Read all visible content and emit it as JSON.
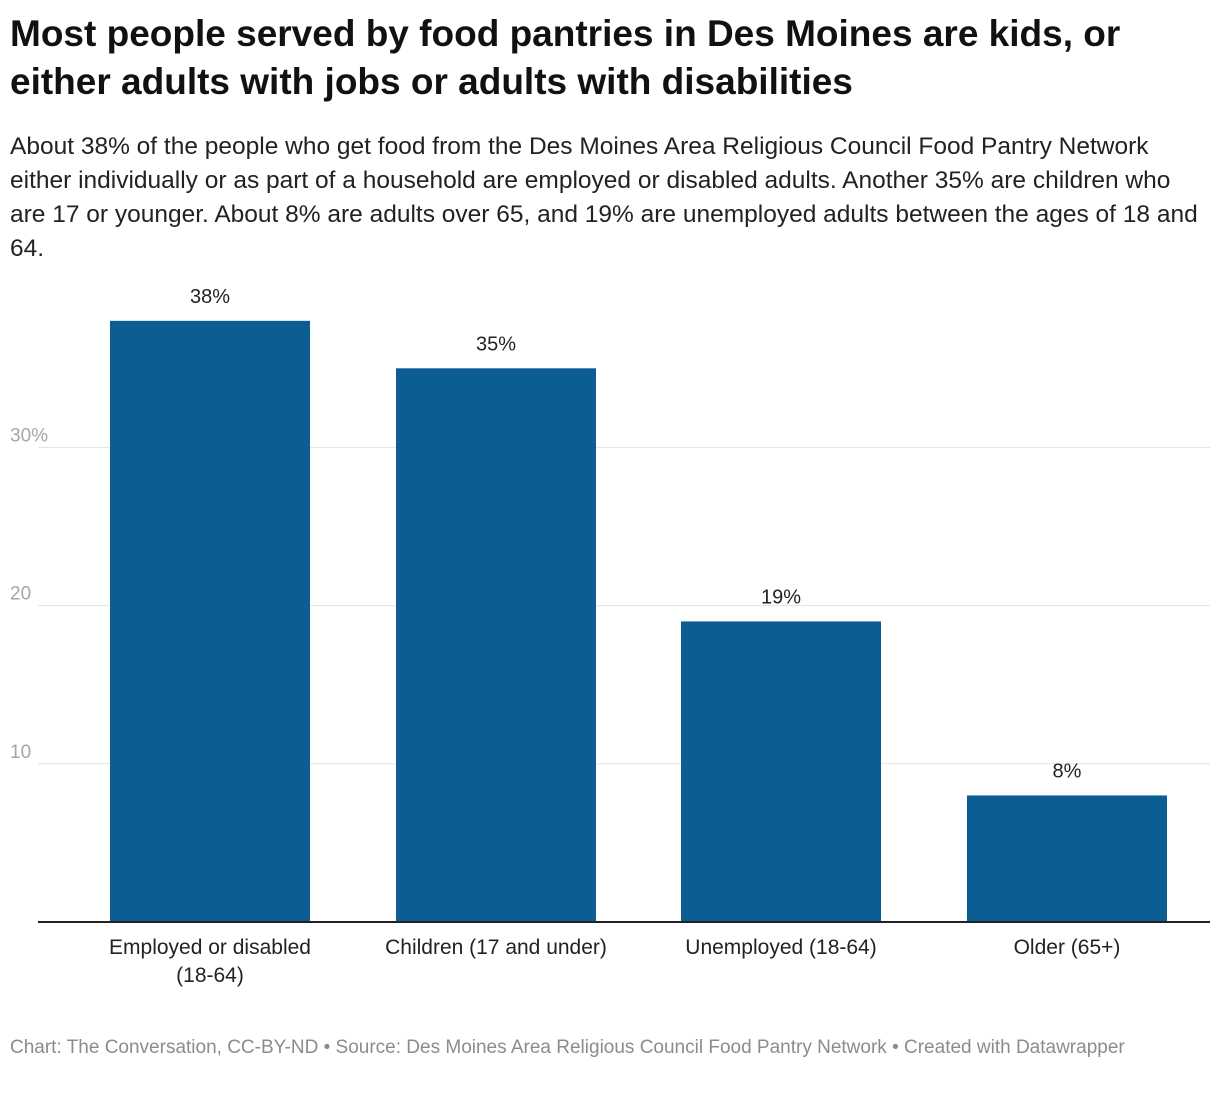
{
  "chart_data": {
    "type": "bar",
    "title": "Most people served by food pantries in Des Moines are kids, or either adults with jobs or adults with disabilities",
    "subtitle": "About 38% of the people who get food from the Des Moines Area Religious Council Food Pantry Network either individually or as part of a household are employed or disabled adults. Another 35% are children who are 17 or younger. About 8% are adults over 65, and 19% are unemployed adults between the ages of 18 and 64.",
    "categories": [
      [
        "Employed or disabled",
        "(18-64)"
      ],
      [
        "Children (17 and under)"
      ],
      [
        "Unemployed (18-64)"
      ],
      [
        "Older (65+)"
      ]
    ],
    "values": [
      38,
      35,
      19,
      8
    ],
    "value_labels": [
      "38%",
      "35%",
      "19%",
      "8%"
    ],
    "yticks": [
      10,
      20,
      30
    ],
    "ytick_labels": [
      "10",
      "20",
      "30%"
    ],
    "ylim": [
      0,
      38
    ],
    "xlabel": "",
    "ylabel": "",
    "grid": true,
    "bar_color": "#0b5d94"
  },
  "footer": "Chart: The Conversation, CC-BY-ND • Source: Des Moines Area Religious Council Food Pantry Network • Created with Datawrapper"
}
